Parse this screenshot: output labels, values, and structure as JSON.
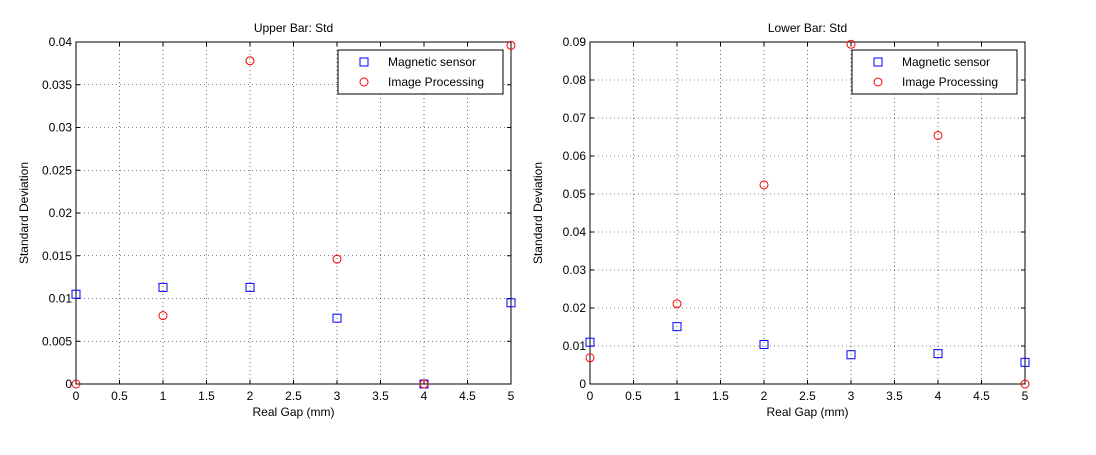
{
  "chart_data": [
    {
      "type": "scatter",
      "title": "Upper Bar: Std",
      "xlabel": "Real Gap (mm)",
      "ylabel": "Standard Deviation",
      "xlim": [
        0,
        5
      ],
      "ylim": [
        0,
        0.04
      ],
      "xticks": [
        "0",
        "0.5",
        "1",
        "1.5",
        "2",
        "2.5",
        "3",
        "3.5",
        "4",
        "4.5",
        "5"
      ],
      "yticks": [
        "0",
        "0.005",
        "0.01",
        "0.015",
        "0.02",
        "0.025",
        "0.03",
        "0.035",
        "0.04"
      ],
      "grid": true,
      "legend_position": "top-right",
      "series": [
        {
          "name": "Magnetic sensor",
          "marker": "square",
          "color": "#0000ff",
          "x": [
            0,
            1,
            2,
            3,
            4,
            5
          ],
          "y": [
            0.0105,
            0.0113,
            0.0113,
            0.0077,
            0.0,
            0.0095
          ]
        },
        {
          "name": "Image Processing",
          "marker": "circle",
          "color": "#ff0000",
          "x": [
            0,
            1,
            2,
            3,
            4,
            5
          ],
          "y": [
            0.0,
            0.008,
            0.0378,
            0.0146,
            0.0,
            0.0396
          ]
        }
      ]
    },
    {
      "type": "scatter",
      "title": "Lower Bar: Std",
      "xlabel": "Real Gap (mm)",
      "ylabel": "Standard Deviation",
      "xlim": [
        0,
        5
      ],
      "ylim": [
        0,
        0.09
      ],
      "xticks": [
        "0",
        "0.5",
        "1",
        "1.5",
        "2",
        "2.5",
        "3",
        "3.5",
        "4",
        "4.5",
        "5"
      ],
      "yticks": [
        "0",
        "0.01",
        "0.02",
        "0.03",
        "0.04",
        "0.05",
        "0.06",
        "0.07",
        "0.08",
        "0.09"
      ],
      "grid": true,
      "legend_position": "top-right",
      "series": [
        {
          "name": "Magnetic sensor",
          "marker": "square",
          "color": "#0000ff",
          "x": [
            0,
            1,
            2,
            3,
            4,
            5
          ],
          "y": [
            0.011,
            0.0151,
            0.0104,
            0.0077,
            0.008,
            0.0057
          ]
        },
        {
          "name": "Image Processing",
          "marker": "circle",
          "color": "#ff0000",
          "x": [
            0,
            1,
            2,
            3,
            4,
            5
          ],
          "y": [
            0.0069,
            0.0211,
            0.0524,
            0.0894,
            0.0654,
            0.0
          ]
        }
      ]
    }
  ]
}
